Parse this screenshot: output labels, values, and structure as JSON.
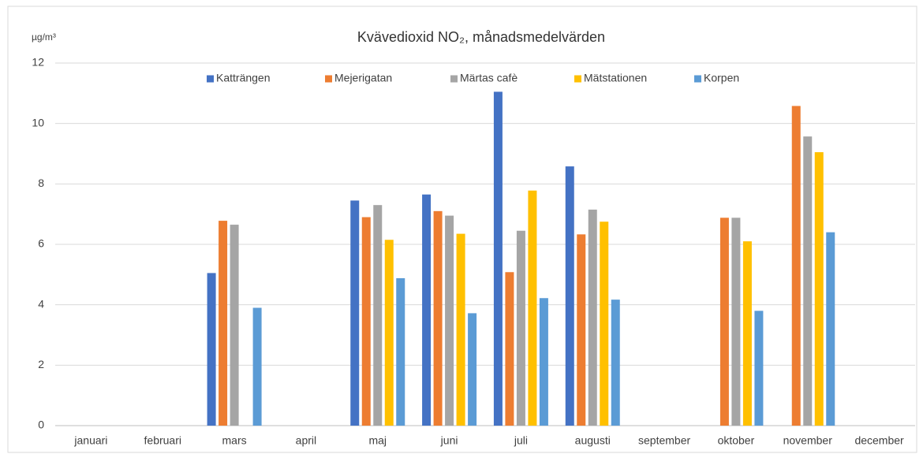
{
  "chart_data": {
    "type": "bar",
    "title": "Kvävedioxid NO₂, månadsmedelvärden",
    "y_label": "µg/m³",
    "categories": [
      "januari",
      "februari",
      "mars",
      "april",
      "maj",
      "juni",
      "juli",
      "augusti",
      "september",
      "oktober",
      "november",
      "december"
    ],
    "series": [
      {
        "name": "Katträngen",
        "color": "#4472c4",
        "values": [
          null,
          null,
          5.05,
          null,
          7.45,
          7.65,
          11.05,
          8.58,
          null,
          null,
          null,
          null
        ]
      },
      {
        "name": "Mejerigatan",
        "color": "#ed7d31",
        "values": [
          null,
          null,
          6.78,
          null,
          6.9,
          7.1,
          5.08,
          6.33,
          null,
          6.88,
          10.58,
          null
        ]
      },
      {
        "name": "Märtas cafè",
        "color": "#a5a5a5",
        "values": [
          null,
          null,
          6.65,
          null,
          7.3,
          6.95,
          6.45,
          7.15,
          null,
          6.88,
          9.57,
          null
        ]
      },
      {
        "name": "Mätstationen",
        "color": "#ffc000",
        "values": [
          null,
          null,
          null,
          null,
          6.15,
          6.35,
          7.78,
          6.75,
          null,
          6.1,
          9.05,
          null
        ]
      },
      {
        "name": "Korpen",
        "color": "#5b9bd5",
        "values": [
          null,
          null,
          3.9,
          null,
          4.88,
          3.72,
          4.22,
          4.17,
          null,
          3.8,
          6.4,
          null
        ]
      }
    ],
    "ylim": [
      0,
      12
    ],
    "yticks": [
      0,
      2,
      4,
      6,
      8,
      10,
      12
    ],
    "grid": true,
    "legend": "top"
  }
}
